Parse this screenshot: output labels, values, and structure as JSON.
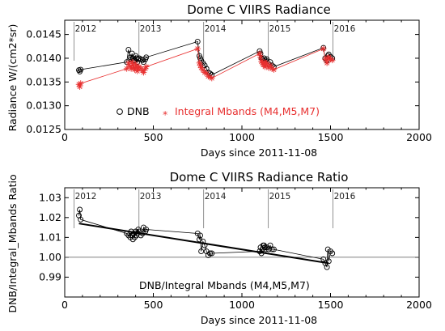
{
  "chart_data": [
    {
      "type": "line",
      "title": "Dome C VIIRS Radiance",
      "xlabel": "Days since 2011-11-08",
      "ylabel": "Radiance W/(cm2*sr)",
      "xlim": [
        0,
        2000
      ],
      "ylim": [
        0.0125,
        0.0148
      ],
      "x_ticks": [
        0,
        500,
        1000,
        1500,
        2000
      ],
      "y_ticks": [
        0.0125,
        0.013,
        0.0135,
        0.014,
        0.0145
      ],
      "y_tick_labels": [
        "0.0125",
        "0.0130",
        "0.0135",
        "0.0140",
        "0.0145"
      ],
      "year_markers": [
        {
          "label": "2012",
          "x": 53
        },
        {
          "label": "2013",
          "x": 419
        },
        {
          "label": "2014",
          "x": 784
        },
        {
          "label": "2015",
          "x": 1149
        },
        {
          "label": "2016",
          "x": 1514
        }
      ],
      "series": [
        {
          "name": "DNB",
          "marker": "circle",
          "color": "#000000",
          "x": [
            80,
            85,
            90,
            350,
            360,
            370,
            375,
            380,
            385,
            390,
            395,
            400,
            405,
            410,
            415,
            420,
            430,
            440,
            445,
            455,
            460,
            750,
            760,
            765,
            770,
            780,
            790,
            800,
            810,
            820,
            830,
            1100,
            1105,
            1110,
            1115,
            1120,
            1125,
            1130,
            1135,
            1140,
            1150,
            1160,
            1170,
            1180,
            1460,
            1470,
            1480,
            1485,
            1490,
            1500,
            1510
          ],
          "y": [
            0.01375,
            0.01372,
            0.01376,
            0.01392,
            0.01418,
            0.01402,
            0.01398,
            0.0141,
            0.014,
            0.01395,
            0.01396,
            0.01405,
            0.014,
            0.01392,
            0.01398,
            0.014,
            0.01398,
            0.01396,
            0.01392,
            0.01398,
            0.01402,
            0.01435,
            0.01405,
            0.014,
            0.01395,
            0.0139,
            0.01385,
            0.01378,
            0.0137,
            0.01368,
            0.01365,
            0.01415,
            0.0141,
            0.014,
            0.01398,
            0.01395,
            0.014,
            0.0139,
            0.01395,
            0.01398,
            0.01388,
            0.01392,
            0.01385,
            0.01382,
            0.01422,
            0.014,
            0.01395,
            0.01405,
            0.01408,
            0.01403,
            0.014
          ]
        },
        {
          "name": "Integral Mbands (M4,M5,M7)",
          "marker": "asterisk",
          "color": "#e83030",
          "x": [
            80,
            85,
            90,
            350,
            360,
            370,
            375,
            380,
            385,
            390,
            395,
            400,
            405,
            410,
            415,
            420,
            430,
            440,
            445,
            455,
            460,
            750,
            760,
            765,
            770,
            780,
            790,
            800,
            810,
            820,
            830,
            1100,
            1105,
            1110,
            1115,
            1120,
            1125,
            1130,
            1135,
            1140,
            1150,
            1160,
            1170,
            1180,
            1460,
            1470,
            1480,
            1485,
            1490,
            1500,
            1510
          ],
          "y": [
            0.01345,
            0.0134,
            0.01347,
            0.01378,
            0.0139,
            0.01383,
            0.01378,
            0.01392,
            0.01385,
            0.0138,
            0.01376,
            0.01388,
            0.01381,
            0.01373,
            0.0138,
            0.01382,
            0.01378,
            0.01374,
            0.0137,
            0.01378,
            0.01382,
            0.0142,
            0.0139,
            0.01385,
            0.0138,
            0.01375,
            0.0137,
            0.01368,
            0.01362,
            0.0136,
            0.01358,
            0.0141,
            0.01402,
            0.01393,
            0.0139,
            0.01386,
            0.01392,
            0.01382,
            0.01388,
            0.0139,
            0.0138,
            0.01385,
            0.01378,
            0.01376,
            0.0142,
            0.01398,
            0.0139,
            0.014,
            0.01402,
            0.01398,
            0.01396
          ]
        }
      ],
      "legend_placement": "bottom-center"
    },
    {
      "type": "scatter",
      "title": "Dome C VIIRS Radiance Ratio",
      "xlabel": "Days since 2011-11-08",
      "ylabel": "DNB/Integral_Mbands Ratio",
      "xlim": [
        0,
        2000
      ],
      "ylim": [
        0.98,
        1.035
      ],
      "x_ticks": [
        0,
        500,
        1000,
        1500,
        2000
      ],
      "y_ticks": [
        0.99,
        1.0,
        1.01,
        1.02,
        1.03
      ],
      "y_tick_labels": [
        "0.99",
        "1.00",
        "1.01",
        "1.02",
        "1.03"
      ],
      "reference_line": 1.0,
      "trend_line": {
        "x": [
          80,
          1490
        ],
        "y": [
          1.017,
          0.997
        ]
      },
      "year_markers": [
        {
          "label": "2012",
          "x": 53
        },
        {
          "label": "2013",
          "x": 419
        },
        {
          "label": "2014",
          "x": 784
        },
        {
          "label": "2015",
          "x": 1149
        },
        {
          "label": "2016",
          "x": 1514
        }
      ],
      "annotation": "DNB/Integral Mbands (M4,M5,M7)",
      "series": [
        {
          "name": "DNB/Integral Mbands (M4,M5,M7)",
          "marker": "circle",
          "x": [
            80,
            85,
            90,
            350,
            360,
            370,
            375,
            380,
            385,
            390,
            395,
            400,
            405,
            410,
            415,
            420,
            430,
            440,
            445,
            455,
            460,
            750,
            760,
            765,
            770,
            780,
            790,
            800,
            810,
            820,
            830,
            1100,
            1105,
            1110,
            1115,
            1120,
            1125,
            1130,
            1135,
            1140,
            1150,
            1160,
            1170,
            1180,
            1460,
            1470,
            1480,
            1485,
            1490,
            1500,
            1510
          ],
          "y": [
            1.021,
            1.024,
            1.019,
            1.012,
            1.011,
            1.01,
            1.013,
            1.011,
            1.009,
            1.012,
            1.01,
            1.013,
            1.011,
            1.012,
            1.014,
            1.013,
            1.011,
            1.012,
            1.015,
            1.013,
            1.014,
            1.012,
            1.009,
            1.011,
            1.003,
            1.008,
            1.006,
            1.003,
            1.001,
            1.002,
            1.002,
            1.003,
            1.005,
            1.002,
            1.004,
            1.006,
            1.006,
            1.005,
            1.004,
            1.005,
            1.004,
            1.006,
            1.004,
            1.004,
            0.999,
            0.997,
            0.995,
            1.004,
            0.998,
            1.003,
            1.002
          ]
        }
      ]
    }
  ]
}
